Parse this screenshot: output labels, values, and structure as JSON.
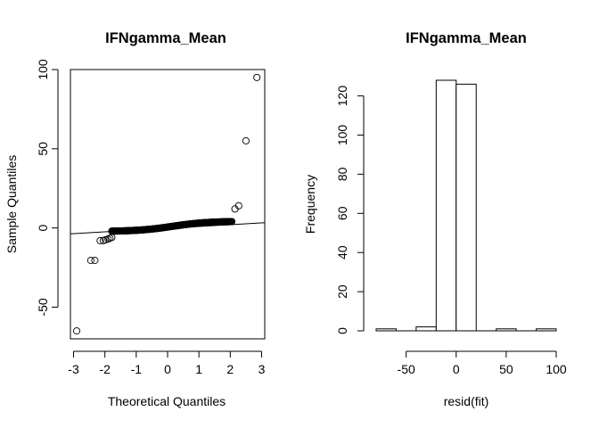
{
  "chart_data": [
    {
      "type": "scatter",
      "title": "IFNgamma_Mean",
      "xlabel": "Theoretical Quantiles",
      "ylabel": "Sample Quantiles",
      "xlim": [
        -3.1,
        3.1
      ],
      "ylim": [
        -70,
        100
      ],
      "x_ticks": [
        -3,
        -2,
        -1,
        0,
        1,
        2,
        3
      ],
      "y_ticks": [
        -50,
        0,
        50,
        100
      ],
      "grid": false,
      "reference_line": {
        "x": [
          -3.1,
          3.1
        ],
        "y": [
          -3.7,
          3.3
        ]
      },
      "points": {
        "x": [
          -2.9,
          -2.45,
          -2.32,
          -2.15,
          -2.05,
          -1.98,
          -1.9,
          -1.84,
          -1.78,
          2.15,
          2.27,
          2.5,
          2.85
        ],
        "y": [
          -65,
          -20.5,
          -20.5,
          -8,
          -8,
          -7.5,
          -7,
          -6.5,
          -6,
          12,
          14,
          55,
          95
        ]
      },
      "dense_band": {
        "x_from": -1.78,
        "x_to": 2.05,
        "y_from": -2.2,
        "y_to": 4.2,
        "count": 200
      }
    },
    {
      "type": "bar",
      "title": "IFNgamma_Mean",
      "xlabel": "resid(fit)",
      "ylabel": "Frequency",
      "x_ticks": [
        -50,
        0,
        50,
        100
      ],
      "y_ticks": [
        0,
        20,
        40,
        60,
        80,
        100,
        120
      ],
      "xlim": [
        -80,
        100
      ],
      "ylim": [
        0,
        128
      ],
      "grid": false,
      "bins": [
        {
          "x0": -80,
          "x1": -60,
          "count": 1
        },
        {
          "x0": -60,
          "x1": -40,
          "count": 0
        },
        {
          "x0": -40,
          "x1": -20,
          "count": 2
        },
        {
          "x0": -20,
          "x1": 0,
          "count": 128
        },
        {
          "x0": 0,
          "x1": 20,
          "count": 126
        },
        {
          "x0": 20,
          "x1": 40,
          "count": 0
        },
        {
          "x0": 40,
          "x1": 60,
          "count": 1
        },
        {
          "x0": 60,
          "x1": 80,
          "count": 0
        },
        {
          "x0": 80,
          "x1": 100,
          "count": 1
        }
      ]
    }
  ]
}
